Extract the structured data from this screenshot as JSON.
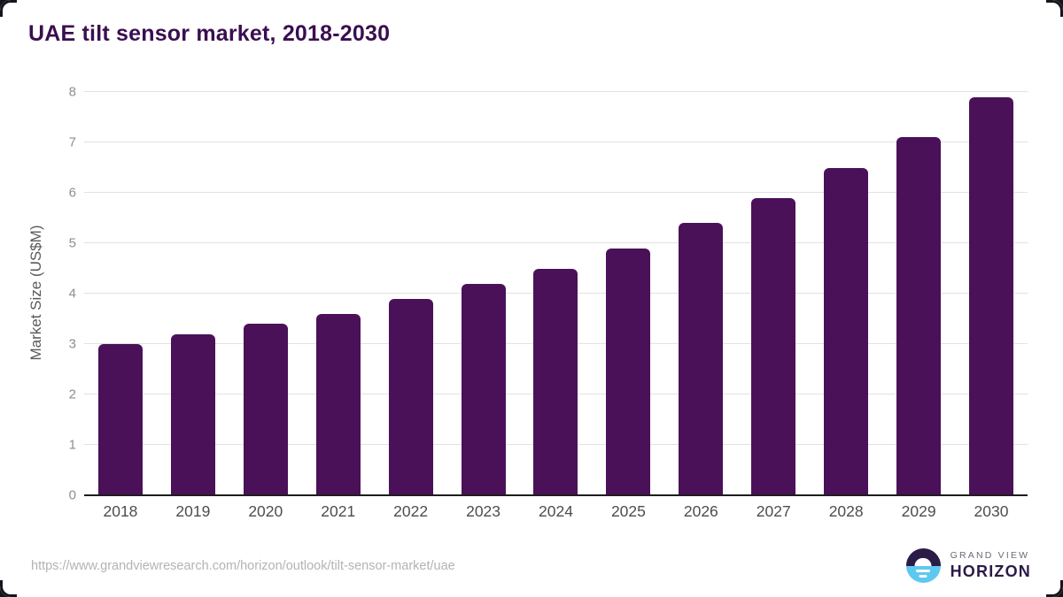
{
  "header": {
    "title": "UAE tilt sensor market, 2018-2030"
  },
  "chart_data": {
    "type": "bar",
    "title": "UAE tilt sensor market, 2018-2030",
    "categories": [
      "2018",
      "2019",
      "2020",
      "2021",
      "2022",
      "2023",
      "2024",
      "2025",
      "2026",
      "2027",
      "2028",
      "2029",
      "2030"
    ],
    "values": [
      3.0,
      3.2,
      3.4,
      3.6,
      3.9,
      4.2,
      4.5,
      4.9,
      5.4,
      5.9,
      6.5,
      7.1,
      7.9
    ],
    "xlabel": "",
    "ylabel": "Market Size (US$M)",
    "ylim": [
      0,
      8
    ],
    "ytick_step": 1,
    "yticks": [
      0,
      1,
      2,
      3,
      4,
      5,
      6,
      7,
      8
    ],
    "grid": true,
    "legend": false,
    "bar_color": "#4a1159"
  },
  "colors": {
    "title_text": "#3a0e50",
    "bar_fill": "#4a1159",
    "gridline": "#e2e2e2",
    "axis_line": "#1d1d1d",
    "y_tick_text": "#8e8e8e",
    "x_tick_text": "#4d4d4d",
    "logo_navy": "#2b1b47",
    "logo_blue": "#5ec8f2"
  },
  "footer": {
    "source_url": "https://www.grandviewresearch.com/horizon/outlook/tilt-sensor-market/uae",
    "logo": {
      "brand_top": "GRAND VIEW",
      "brand_bottom": "HORIZON"
    }
  }
}
